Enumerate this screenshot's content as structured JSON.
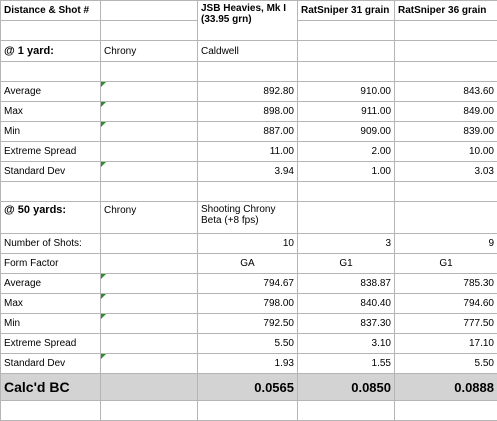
{
  "header": {
    "col_a": "Distance & Shot #",
    "col_b": "",
    "col_c": "JSB Heavies, Mk I (33.95 grn)",
    "col_d": "RatSniper 31 grain",
    "col_e": "RatSniper 36 grain"
  },
  "one_yard": {
    "title": "@ 1 yard:",
    "device": "Chrony",
    "device_detail": "Caldwell",
    "rows": [
      {
        "label": "Average",
        "jsb": "892.80",
        "rs31": "910.00",
        "rs36": "843.60"
      },
      {
        "label": "Max",
        "jsb": "898.00",
        "rs31": "911.00",
        "rs36": "849.00"
      },
      {
        "label": "Min",
        "jsb": "887.00",
        "rs31": "909.00",
        "rs36": "839.00"
      },
      {
        "label": "Extreme Spread",
        "jsb": "11.00",
        "rs31": "2.00",
        "rs36": "10.00"
      },
      {
        "label": "Standard Dev",
        "jsb": "3.94",
        "rs31": "1.00",
        "rs36": "3.03"
      }
    ]
  },
  "fifty_yard": {
    "title": "@ 50 yards:",
    "device": "Chrony",
    "device_detail": "Shooting Chrony Beta (+8 fps)",
    "shots": {
      "label": "Number of Shots:",
      "jsb": "10",
      "rs31": "3",
      "rs36": "9"
    },
    "form": {
      "label": "Form Factor",
      "jsb": "GA",
      "rs31": "G1",
      "rs36": "G1"
    },
    "rows": [
      {
        "label": "Average",
        "jsb": "794.67",
        "rs31": "838.87",
        "rs36": "785.30"
      },
      {
        "label": "Max",
        "jsb": "798.00",
        "rs31": "840.40",
        "rs36": "794.60"
      },
      {
        "label": "Min",
        "jsb": "792.50",
        "rs31": "837.30",
        "rs36": "777.50"
      },
      {
        "label": "Extreme Spread",
        "jsb": "5.50",
        "rs31": "3.10",
        "rs36": "17.10"
      },
      {
        "label": "Standard Dev",
        "jsb": "1.93",
        "rs31": "1.55",
        "rs36": "5.50"
      }
    ]
  },
  "calc_bc": {
    "label": "Calc'd BC",
    "jsb": "0.0565",
    "rs31": "0.0850",
    "rs36": "0.0888"
  },
  "colors": {
    "cell_border": "#b5b5b5",
    "total_row_bg": "#d3d3d3",
    "comment_flag": "#2e8b2e"
  }
}
